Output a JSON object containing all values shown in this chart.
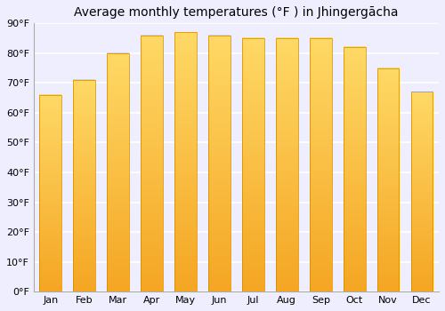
{
  "title": "Average monthly temperatures (°F ) in Jhingergācha",
  "months": [
    "Jan",
    "Feb",
    "Mar",
    "Apr",
    "May",
    "Jun",
    "Jul",
    "Aug",
    "Sep",
    "Oct",
    "Nov",
    "Dec"
  ],
  "values": [
    66,
    71,
    80,
    86,
    87,
    86,
    85,
    85,
    85,
    82,
    75,
    67
  ],
  "ylim": [
    0,
    90
  ],
  "yticks": [
    0,
    10,
    20,
    30,
    40,
    50,
    60,
    70,
    80,
    90
  ],
  "ytick_labels": [
    "0°F",
    "10°F",
    "20°F",
    "30°F",
    "40°F",
    "50°F",
    "60°F",
    "70°F",
    "80°F",
    "90°F"
  ],
  "bar_color_bottom": "#F5A623",
  "bar_color_top": "#FFD966",
  "bar_edge_color": "#CC8800",
  "background_color": "#eeeeff",
  "grid_color": "#ffffff",
  "title_fontsize": 10,
  "tick_fontsize": 8,
  "bar_width": 0.65
}
